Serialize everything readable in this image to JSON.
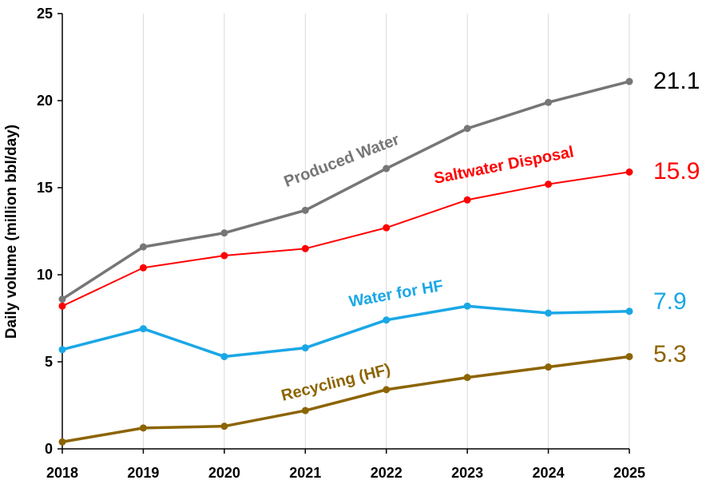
{
  "chart_data": {
    "type": "line",
    "title": "",
    "xlabel": "",
    "ylabel": "Daily volume (million bbl/day)",
    "x": [
      "2018",
      "2019",
      "2020",
      "2021",
      "2022",
      "2023",
      "2024",
      "2025"
    ],
    "ylim": [
      0,
      25
    ],
    "yticks": [
      "0",
      "5",
      "10",
      "15",
      "20",
      "25"
    ],
    "grid": "vertical",
    "series": [
      {
        "name": "Produced Water",
        "color": "#767676",
        "values": [
          8.6,
          11.6,
          12.4,
          13.7,
          16.1,
          18.4,
          19.9,
          21.1
        ],
        "end_label": "21.1"
      },
      {
        "name": "Saltwater Disposal",
        "color": "#ff0000",
        "values": [
          8.2,
          10.4,
          11.1,
          11.5,
          12.7,
          14.3,
          15.2,
          15.9
        ],
        "end_label": "15.9"
      },
      {
        "name": "Water for HF",
        "color": "#1aa7e6",
        "values": [
          5.7,
          6.9,
          5.3,
          5.8,
          7.4,
          8.2,
          7.8,
          7.9
        ],
        "end_label": "7.9"
      },
      {
        "name": "Recycling (HF)",
        "color": "#8c6400",
        "values": [
          0.4,
          1.2,
          1.3,
          2.2,
          3.4,
          4.1,
          4.7,
          5.3
        ],
        "end_label": "5.3"
      }
    ]
  }
}
